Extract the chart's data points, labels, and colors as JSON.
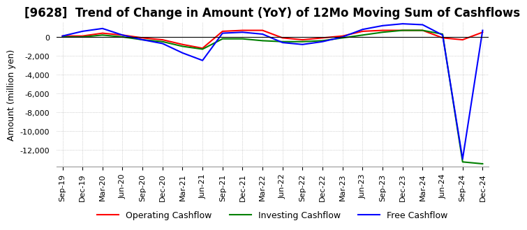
{
  "title": "[9628]  Trend of Change in Amount (YoY) of 12Mo Moving Sum of Cashflows",
  "xlabel": "",
  "ylabel": "Amount (million yen)",
  "x_labels": [
    "Sep-19",
    "Dec-19",
    "Mar-20",
    "Jun-20",
    "Sep-20",
    "Dec-20",
    "Mar-21",
    "Jun-21",
    "Sep-21",
    "Dec-21",
    "Mar-22",
    "Jun-22",
    "Sep-22",
    "Dec-22",
    "Mar-23",
    "Jun-23",
    "Sep-23",
    "Dec-23",
    "Mar-24",
    "Jun-24",
    "Sep-24",
    "Dec-24"
  ],
  "operating_cashflow": [
    100,
    100,
    400,
    200,
    -100,
    -300,
    -800,
    -1200,
    600,
    700,
    700,
    -100,
    -300,
    -100,
    100,
    600,
    700,
    700,
    700,
    -100,
    -300,
    500
  ],
  "investing_cashflow": [
    0,
    0,
    200,
    0,
    -300,
    -500,
    -1000,
    -1300,
    -200,
    -200,
    -400,
    -500,
    -500,
    -400,
    -100,
    200,
    500,
    700,
    700,
    300,
    -13300,
    -13500
  ],
  "free_cashflow": [
    100,
    600,
    900,
    200,
    -300,
    -700,
    -1700,
    -2500,
    400,
    500,
    300,
    -600,
    -800,
    -500,
    0,
    800,
    1200,
    1400,
    1300,
    200,
    -13000,
    700
  ],
  "ylim": [
    -13800,
    1600
  ],
  "yticks": [
    0,
    -2000,
    -4000,
    -6000,
    -8000,
    -10000,
    -12000
  ],
  "operating_color": "#ff0000",
  "investing_color": "#008000",
  "free_color": "#0000ff",
  "background_color": "#ffffff",
  "grid_color": "#b0b0b0",
  "title_fontsize": 12,
  "legend_fontsize": 9,
  "axis_fontsize": 8
}
